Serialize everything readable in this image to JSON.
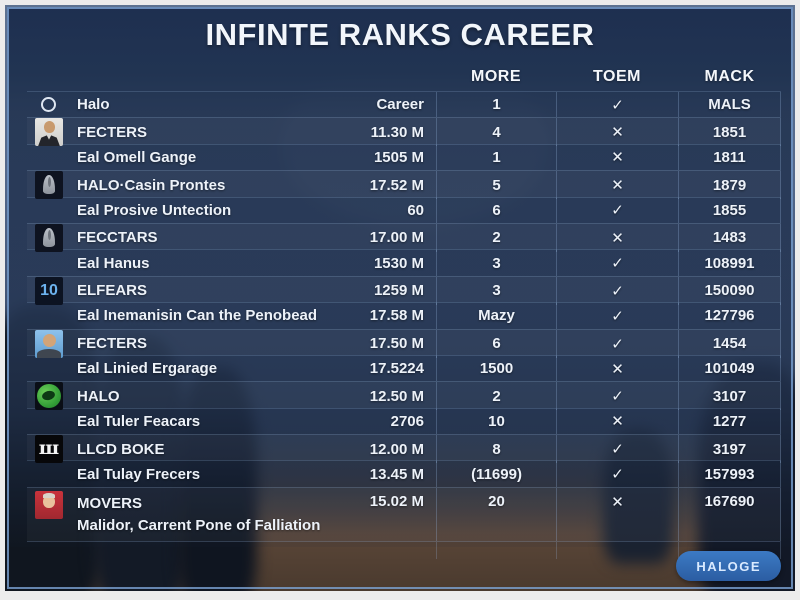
{
  "title": "INFINTE RANKS CAREER",
  "columns": {
    "more": "MORE",
    "toem": "TOEM",
    "mack": "MACK"
  },
  "button": {
    "label": "HALOGE"
  },
  "accent_color": "#2f6cb3",
  "frame_color": "#7da5d7",
  "marks": {
    "check": "✓",
    "x": "✕"
  },
  "icon_glyphs": {
    "number-10": "10",
    "w-logo": "ш"
  },
  "rows": [
    {
      "icon": "circle-outline",
      "name": "Halo",
      "value": "Career",
      "more": "1",
      "toem": "check",
      "mack": "MALS"
    },
    {
      "icon": "avatar-suit",
      "name": "FECTERS",
      "value": "11.30 M",
      "more": "4",
      "toem": "x",
      "mack": "1851"
    },
    {
      "icon": "",
      "name": "Eal Omell Gange",
      "value": "1505 M",
      "more": "1",
      "toem": "x",
      "mack": "1811"
    },
    {
      "icon": "hooded",
      "name": "HALO·Casin Prontes",
      "value": "17.52 M",
      "more": "5",
      "toem": "x",
      "mack": "1879"
    },
    {
      "icon": "",
      "name": "Eal Prosive Untection",
      "value": "60",
      "more": "6",
      "toem": "check",
      "mack": "1855"
    },
    {
      "icon": "hooded",
      "name": "FECCTARS",
      "value": "17.00 M",
      "more": "2",
      "toem": "x",
      "mack": "1483"
    },
    {
      "icon": "",
      "name": "Eal Hanus",
      "value": "1530 M",
      "more": "3",
      "toem": "check",
      "mack": "108991"
    },
    {
      "icon": "number-10",
      "name": "ELFEARS",
      "value": "1259 M",
      "more": "3",
      "toem": "check",
      "mack": "150090"
    },
    {
      "icon": "",
      "name": "Eal Inemanisin Can the Penobead",
      "value": "17.58 M",
      "more": "Mazy",
      "toem": "check",
      "mack": "127796"
    },
    {
      "icon": "avatar-blue",
      "name": "FECTERS",
      "value": "17.50 M",
      "more": "6",
      "toem": "check",
      "mack": "1454"
    },
    {
      "icon": "",
      "name": "Eal Linied Ergarage",
      "value": "17.5224",
      "more": "1500",
      "toem": "x",
      "mack": "101049"
    },
    {
      "icon": "green-orb",
      "name": "HALO",
      "value": "12.50 M",
      "more": "2",
      "toem": "check",
      "mack": "3107"
    },
    {
      "icon": "",
      "name": "Eal Tuler Feacars",
      "value": "2706",
      "more": "10",
      "toem": "x",
      "mack": "1277"
    },
    {
      "icon": "w-logo",
      "name": "LLCD BOKE",
      "value": "12.00 M",
      "more": "8",
      "toem": "check",
      "mack": "3197"
    },
    {
      "icon": "",
      "name": "Eal Tulay Frecers",
      "value": "13.45 M",
      "more": "(11699)",
      "toem": "check",
      "mack": "157993"
    },
    {
      "icon": "avatar-red",
      "name": "MOVERS",
      "subtitle": "Malidor, Carrent Pone of Falliation",
      "value": "15.02 M",
      "more": "20",
      "toem": "x",
      "mack": "167690"
    }
  ]
}
